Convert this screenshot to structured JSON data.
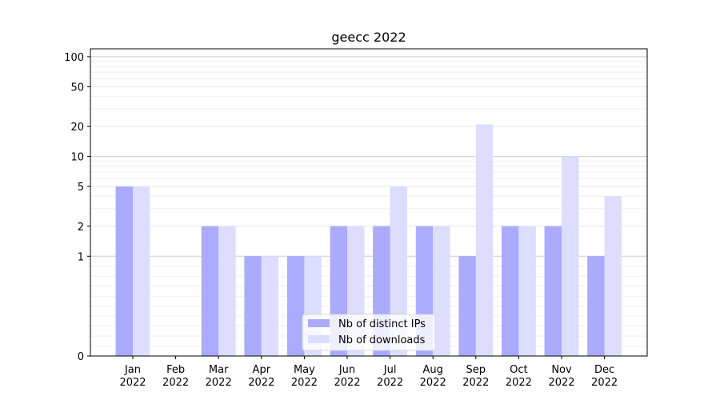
{
  "chart_data": {
    "type": "bar",
    "title": "geecc 2022",
    "xlabel": "",
    "ylabel": "",
    "yscale": "symlog",
    "ylim": [
      0,
      120
    ],
    "yticks": [
      0,
      1,
      2,
      5,
      10,
      20,
      50,
      100
    ],
    "ytick_labels": [
      "0",
      "1",
      "2",
      "5",
      "10",
      "20",
      "50",
      "100"
    ],
    "grid": true,
    "legend_position": "bottom-center",
    "categories": [
      [
        "Jan",
        "2022"
      ],
      [
        "Feb",
        "2022"
      ],
      [
        "Mar",
        "2022"
      ],
      [
        "Apr",
        "2022"
      ],
      [
        "May",
        "2022"
      ],
      [
        "Jun",
        "2022"
      ],
      [
        "Jul",
        "2022"
      ],
      [
        "Aug",
        "2022"
      ],
      [
        "Sep",
        "2022"
      ],
      [
        "Oct",
        "2022"
      ],
      [
        "Nov",
        "2022"
      ],
      [
        "Dec",
        "2022"
      ]
    ],
    "series": [
      {
        "name": "Nb of distinct IPs",
        "color": "#aaaaff",
        "values": [
          5,
          0,
          2,
          1,
          1,
          2,
          2,
          2,
          1,
          2,
          2,
          1
        ]
      },
      {
        "name": "Nb of downloads",
        "color": "#ddddff",
        "values": [
          5,
          0,
          2,
          1,
          1,
          2,
          5,
          2,
          21,
          2,
          10,
          4
        ]
      }
    ]
  }
}
